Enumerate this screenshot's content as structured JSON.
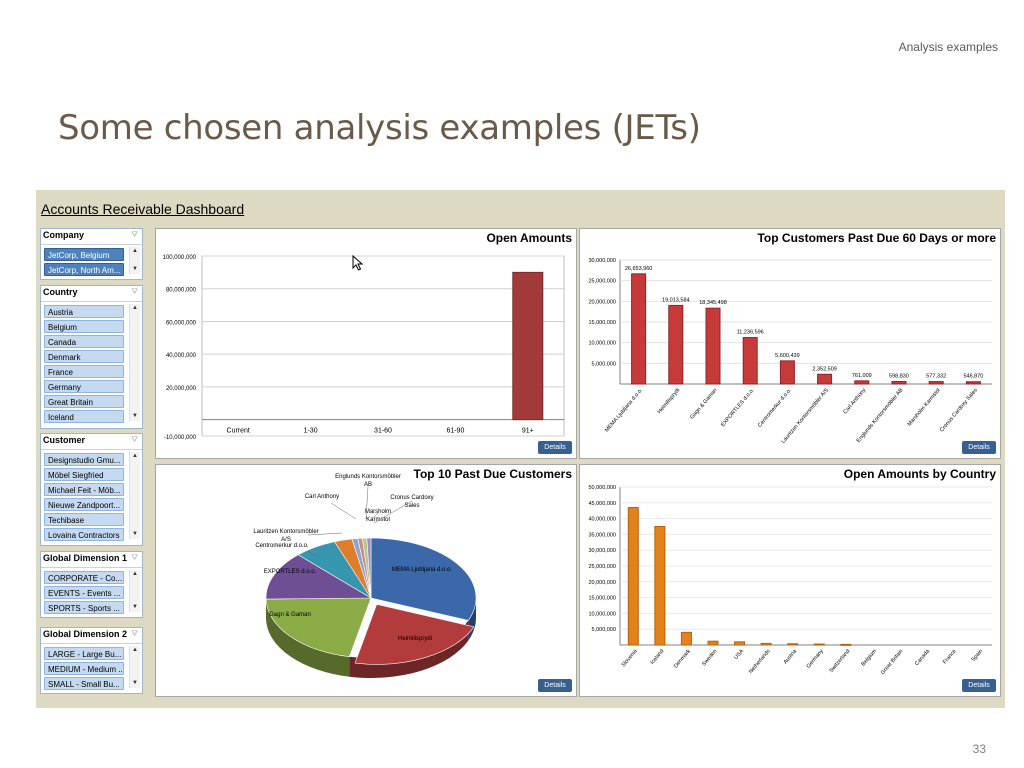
{
  "slide": {
    "header_right": "Analysis examples",
    "title": "Some chosen  analysis examples (JETs)",
    "page_number": "33"
  },
  "dashboard": {
    "title": "Accounts Receivable Dashboard",
    "details_label": "Details",
    "slicers": [
      {
        "name": "Company",
        "items": [
          {
            "label": "JetCorp, Belgium",
            "selected": true
          },
          {
            "label": "JetCorp, North Am...",
            "selected": true
          }
        ]
      },
      {
        "name": "Country",
        "items": [
          {
            "label": "Austria"
          },
          {
            "label": "Belgium"
          },
          {
            "label": "Canada"
          },
          {
            "label": "Denmark"
          },
          {
            "label": "France"
          },
          {
            "label": "Germany"
          },
          {
            "label": "Great Britain"
          },
          {
            "label": "Iceland"
          }
        ]
      },
      {
        "name": "Customer",
        "items": [
          {
            "label": "Designstudio Gmu..."
          },
          {
            "label": "Möbel Siegfried"
          },
          {
            "label": "Michael Feit - Möb..."
          },
          {
            "label": "Nieuwe Zandpoort..."
          },
          {
            "label": "Techibase"
          },
          {
            "label": "Lovaina Contractors"
          }
        ]
      },
      {
        "name": "Global Dimension 1",
        "items": [
          {
            "label": "CORPORATE - Co..."
          },
          {
            "label": "EVENTS - Events ..."
          },
          {
            "label": "SPORTS - Sports ..."
          }
        ]
      },
      {
        "name": "Global Dimension 2",
        "items": [
          {
            "label": "LARGE - Large Bu..."
          },
          {
            "label": "MEDIUM - Medium ..."
          },
          {
            "label": "SMALL - Small Bu..."
          }
        ]
      }
    ]
  },
  "colors": {
    "red_bar": "#a33a3a",
    "red_bar2": "#c0392b",
    "orange_bar": "#e3821b",
    "blue": "#376092"
  },
  "chart_data": [
    {
      "type": "bar",
      "title": "Open Amounts",
      "categories": [
        "Current",
        "1-30",
        "31-60",
        "61-90",
        "91+"
      ],
      "values": [
        0,
        0,
        0,
        0,
        90000000
      ],
      "ylim": [
        -10000000,
        100000000
      ],
      "yticks": [
        "100,000,000",
        "80,000,000",
        "60,000,000",
        "40,000,000",
        "20,000,000",
        "-10,000,000"
      ],
      "ytick_values": [
        100000000,
        80000000,
        60000000,
        40000000,
        20000000,
        -10000000
      ],
      "grid": true
    },
    {
      "type": "bar",
      "title": "Top Customers Past Due 60 Days or more",
      "categories": [
        "MEMA Ljubljana d.o.o.",
        "Heimilisprydi",
        "Gagn & Gaman",
        "EXPORTLES d.o.o.",
        "Centromerkur d.o.o.",
        "Lauritzen Kontorsmöbler A/S",
        "Carl Anthony",
        "Englunds Kontorsmöbler AB",
        "Marsholm Karmstol",
        "Cronus Cardoxy Sales"
      ],
      "values": [
        26653960,
        19013584,
        18345498,
        11236596,
        5600439,
        2352509,
        761009,
        598830,
        577332,
        546870
      ],
      "data_labels": [
        "26,653,960",
        "19,013,584",
        "18,345,498",
        "11,236,596",
        "5,600,439",
        "2,352,509",
        "761,009",
        "598,830",
        "577,332",
        "546,870"
      ],
      "ylim": [
        0,
        30000000
      ],
      "yticks": [
        "30,000,000",
        "25,000,000",
        "20,000,000",
        "15,000,000",
        "10,000,000",
        "5,000,000"
      ],
      "ytick_values": [
        30000000,
        25000000,
        20000000,
        15000000,
        10000000,
        5000000
      ]
    },
    {
      "type": "pie",
      "title": "Top 10 Past Due Customers",
      "labels": [
        "MEMA Ljubljana d.o.o.",
        "Heimilisprydi",
        "Gagn & Gaman",
        "EXPORTLES d.o.o.",
        "Centromerkur d.o.o.",
        "Lauritzen Kontorsmöbler A/S",
        "Carl Anthony",
        "Englunds Kontorsmöbler AB",
        "Marsholm Karmstol",
        "Cronus Cardoxy Sales"
      ],
      "values": [
        26653960,
        19013584,
        18345498,
        11236596,
        5600439,
        2352509,
        761009,
        598830,
        577332,
        546870
      ],
      "label_texts": [
        "MEMA Ljubljana d.o.o.",
        "Heimilisprydi",
        "Gagn & Gaman",
        "EXPORTLES d.o.o.",
        "Centromerkur  d.o.o.",
        "Lauritzen Kontorsmöbler A/S",
        "Carl Anthony",
        "Englunds Kontorsmöbler AB",
        "Marsholm Karmstol",
        "Cronus Cardoxy Sales"
      ],
      "colors": [
        "#3a68a8",
        "#b23b3b",
        "#8bab46",
        "#6e4f93",
        "#3796ad",
        "#e07d2a",
        "#8aa5cf",
        "#c98c8c",
        "#b3c98b",
        "#9f8fbf"
      ]
    },
    {
      "type": "bar",
      "title": "Open Amounts by Country",
      "categories": [
        "Slovenia",
        "Iceland",
        "Denmark",
        "Sweden",
        "USA",
        "Netherlands",
        "Austria",
        "Germany",
        "Switzerland",
        "Belgium",
        "Great Britain",
        "Canada",
        "France",
        "Spain"
      ],
      "values": [
        43500000,
        37500000,
        4000000,
        1200000,
        1000000,
        500000,
        400000,
        300000,
        200000,
        0,
        0,
        0,
        0,
        0
      ],
      "ylim": [
        0,
        50000000
      ],
      "yticks": [
        "50,000,000",
        "45,000,000",
        "40,000,000",
        "35,000,000",
        "30,000,000",
        "25,000,000",
        "20,000,000",
        "15,000,000",
        "10,000,000",
        "5,000,000"
      ],
      "ytick_values": [
        50000000,
        45000000,
        40000000,
        35000000,
        30000000,
        25000000,
        20000000,
        15000000,
        10000000,
        5000000
      ]
    }
  ]
}
